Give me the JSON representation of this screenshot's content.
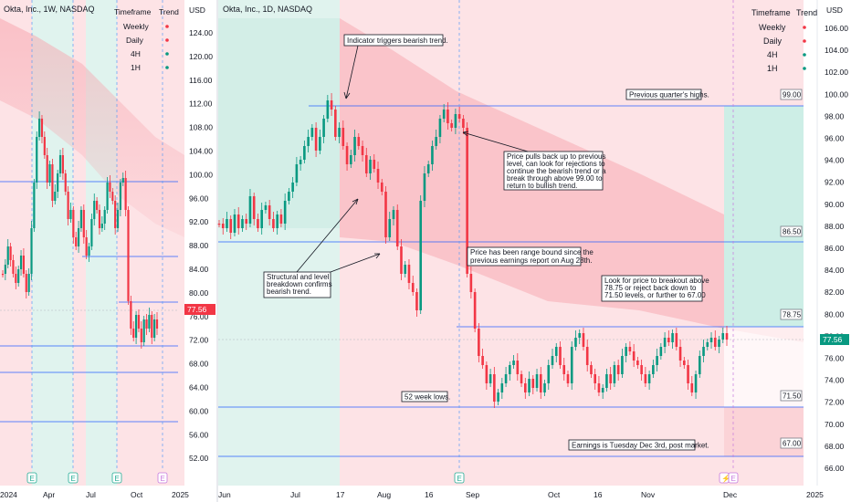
{
  "left_chart": {
    "title": "Okta, Inc., 1W, NASDAQ",
    "currency": "USD",
    "price_axis": [
      "124.00",
      "120.00",
      "116.00",
      "112.00",
      "108.00",
      "104.00",
      "100.00",
      "96.00",
      "92.00",
      "88.00",
      "84.00",
      "80.00",
      "76.00",
      "72.00",
      "68.00",
      "64.00",
      "60.00",
      "56.00",
      "52.00"
    ],
    "last_price": "77.56",
    "time_axis": [
      "2024",
      "Apr",
      "Jul",
      "Oct",
      "2025"
    ],
    "timeframe_table": {
      "headers": [
        "Timeframe",
        "Trend"
      ],
      "rows": [
        {
          "tf": "Weekly",
          "trend": "bearish"
        },
        {
          "tf": "Daily",
          "trend": "bearish"
        },
        {
          "tf": "4H",
          "trend": "bullish"
        },
        {
          "tf": "1H",
          "trend": "bullish"
        }
      ]
    }
  },
  "right_chart": {
    "title": "Okta, Inc., 1D, NASDAQ",
    "currency": "USD",
    "price_axis": [
      "106.00",
      "104.00",
      "102.00",
      "100.00",
      "98.00",
      "96.00",
      "94.00",
      "92.00",
      "90.00",
      "88.00",
      "86.00",
      "84.00",
      "82.00",
      "80.00",
      "78.00",
      "76.00",
      "74.00",
      "72.00",
      "70.00",
      "68.00",
      "66.00"
    ],
    "last_price": "77.56",
    "time_axis": [
      "Jun",
      "Jul",
      "17",
      "Aug",
      "16",
      "Sep",
      "Oct",
      "16",
      "Nov",
      "Dec",
      "2025"
    ],
    "timeframe_table": {
      "headers": [
        "Timeframe",
        "Trend"
      ],
      "rows": [
        {
          "tf": "Weekly",
          "trend": "bearish"
        },
        {
          "tf": "Daily",
          "trend": "bearish"
        },
        {
          "tf": "4H",
          "trend": "bullish"
        },
        {
          "tf": "1H",
          "trend": "bullish"
        }
      ]
    },
    "levels": [
      "99.00",
      "86.50",
      "78.75",
      "71.50",
      "67.00"
    ],
    "annotations": {
      "a1": [
        "Indicator triggers bearish trend."
      ],
      "a2": [
        "Previous quarter's highs."
      ],
      "a3": [
        "Price pulls back up to previous",
        "level, can look for rejections to",
        "continue the bearish trend or a",
        "break through above 99.00 to",
        "return to bullish trend."
      ],
      "a4": [
        "Price has been range bound since the",
        "previous earnings report on Aug 28th."
      ],
      "a5": [
        "Structural and level",
        "breakdown confirms",
        "bearish trend."
      ],
      "a6": [
        "Look for price to breakout above",
        "78.75 or reject back down to",
        "71.50 levels, or further to 67.00"
      ],
      "a7": [
        "52 week lows."
      ],
      "a8": [
        "Earnings is Tuesday Dec 3rd, post market."
      ]
    }
  },
  "colors": {
    "bull": "#089981",
    "bear": "#f23645",
    "level_line": "#2962ff",
    "bull_zone": "#e0f3ee",
    "bear_zone": "#fde3e6",
    "earnings": "#22ab94"
  },
  "events": {
    "earnings_marker": "E",
    "dividend_marker": "E"
  }
}
